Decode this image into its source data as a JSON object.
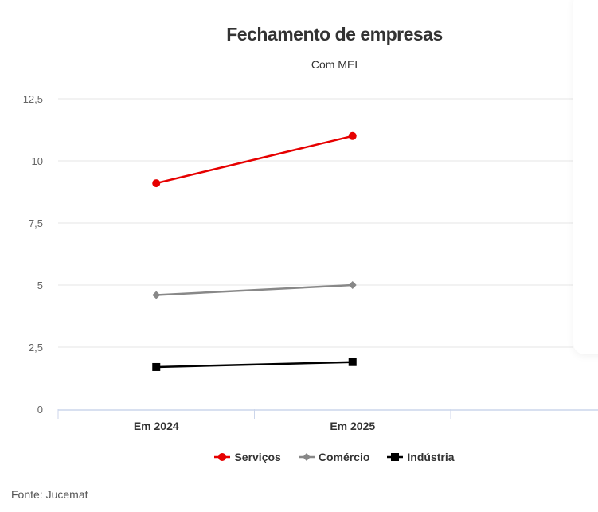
{
  "chart_data": {
    "type": "line",
    "title": "Fechamento de empresas",
    "subtitle": "Com MEI",
    "categories": [
      "Em 2024",
      "Em 2025"
    ],
    "ylim": [
      0,
      12.5
    ],
    "yticks": [
      "0",
      "2,5",
      "5",
      "7,5",
      "10",
      "12,5"
    ],
    "ytick_values": [
      0,
      2.5,
      5,
      7.5,
      10,
      12.5
    ],
    "grid": true,
    "legend_position": "bottom",
    "series": [
      {
        "name": "Serviços",
        "values": [
          9.1,
          11
        ],
        "color": "#e60000",
        "marker": "circle"
      },
      {
        "name": "Comércio",
        "values": [
          4.6,
          5
        ],
        "color": "#888888",
        "marker": "diamond"
      },
      {
        "name": "Indústria",
        "values": [
          1.7,
          1.9
        ],
        "color": "#000000",
        "marker": "square"
      }
    ]
  },
  "source": "Fonte: Jucemat"
}
